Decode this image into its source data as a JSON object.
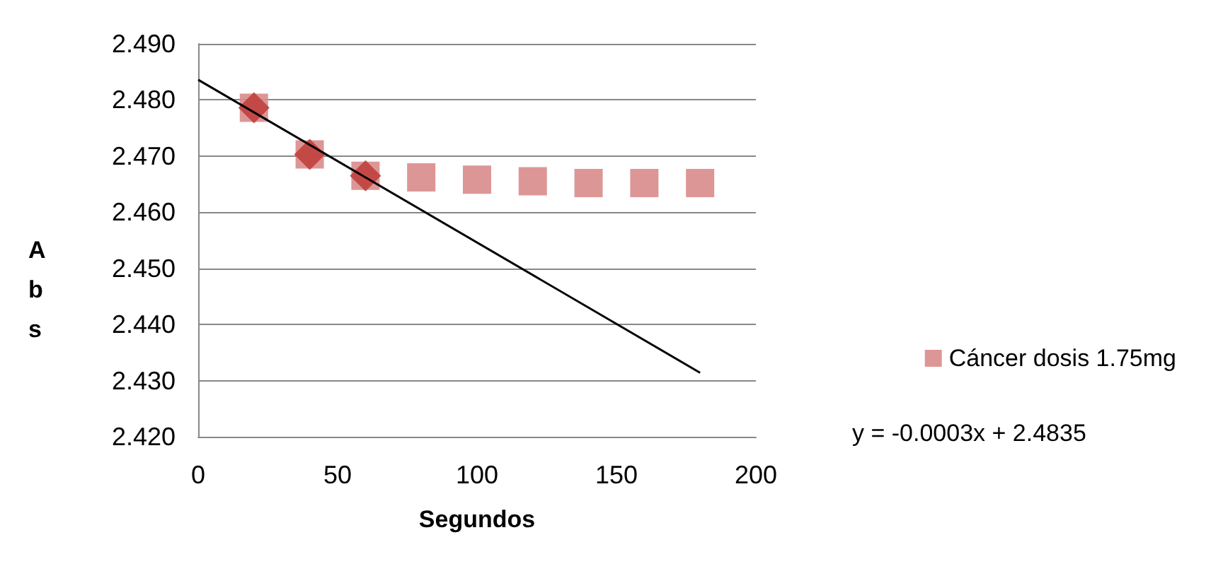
{
  "chart_data": {
    "type": "scatter",
    "xlabel": "Segundos",
    "ylabel": "Abs",
    "xlim": [
      0,
      200
    ],
    "xticks": [
      0,
      50,
      100,
      150,
      200
    ],
    "ylim": [
      2.42,
      2.49
    ],
    "yticks": [
      {
        "value": 2.42,
        "label": "2.420"
      },
      {
        "value": 2.43,
        "label": "2.430"
      },
      {
        "value": 2.44,
        "label": "2.440"
      },
      {
        "value": 2.45,
        "label": "2.450"
      },
      {
        "value": 2.46,
        "label": "2.460"
      },
      {
        "value": 2.47,
        "label": "2.470"
      },
      {
        "value": 2.48,
        "label": "2.480"
      },
      {
        "value": 2.49,
        "label": "2.490"
      }
    ],
    "grid": "y",
    "legend": "right",
    "annotations": [
      "y = -0.0003x + 2.4835"
    ],
    "series": [
      {
        "name": "Cáncer dosis 1.75mg",
        "color": "#d98b8b",
        "marker": "square",
        "x": [
          20,
          40,
          60,
          80,
          100,
          120,
          140,
          160,
          180
        ],
        "values": [
          2.4786,
          2.4703,
          2.4665,
          2.4662,
          2.4658,
          2.4655,
          2.4652,
          2.4652,
          2.4652
        ]
      },
      {
        "type": "scatter",
        "color": "#c0403d",
        "marker": "diamond",
        "x": [
          20,
          40,
          60
        ],
        "values": [
          2.4786,
          2.4703,
          2.4665
        ]
      },
      {
        "type": "line",
        "color": "#000000",
        "marker": "none",
        "line_style": "solid",
        "x": [
          0,
          180
        ],
        "values": [
          2.4836,
          2.4314
        ]
      }
    ]
  }
}
